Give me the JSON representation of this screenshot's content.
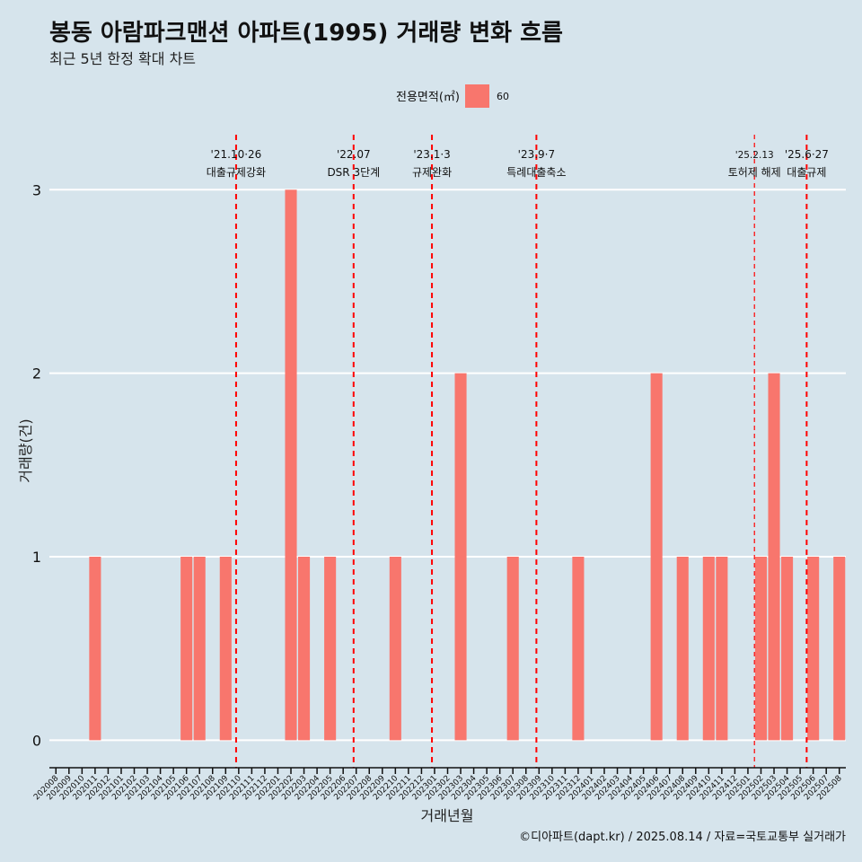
{
  "chart_data": {
    "type": "bar",
    "title": "봉동 아람파크맨션 아파트(1995) 거래량 변화 흐름",
    "subtitle": "최근 5년 한정 확대 차트",
    "xlabel": "거래년월",
    "ylabel": "거래량(건)",
    "ylim": [
      -0.15,
      3.3
    ],
    "yticks": [
      0,
      1,
      2,
      3
    ],
    "grid": true,
    "legend": {
      "title": "전용면적(㎡)",
      "entries": [
        {
          "name": "60",
          "color": "#f8766d"
        }
      ],
      "placement": "top"
    },
    "categories": [
      "202008",
      "202009",
      "202010",
      "202011",
      "202012",
      "202101",
      "202102",
      "202103",
      "202104",
      "202105",
      "202106",
      "202107",
      "202108",
      "202109",
      "202110",
      "202111",
      "202112",
      "202201",
      "202202",
      "202203",
      "202204",
      "202205",
      "202206",
      "202207",
      "202208",
      "202209",
      "202210",
      "202211",
      "202212",
      "202301",
      "202302",
      "202303",
      "202304",
      "202305",
      "202306",
      "202307",
      "202308",
      "202309",
      "202310",
      "202311",
      "202312",
      "202401",
      "202402",
      "202403",
      "202404",
      "202405",
      "202406",
      "202407",
      "202408",
      "202409",
      "202410",
      "202411",
      "202412",
      "202501",
      "202502",
      "202503",
      "202504",
      "202505",
      "202506",
      "202507",
      "202508"
    ],
    "series": [
      {
        "name": "60",
        "color": "#f8766d",
        "values": [
          0,
          0,
          0,
          1,
          0,
          0,
          0,
          0,
          0,
          0,
          1,
          1,
          0,
          1,
          0,
          0,
          0,
          0,
          3,
          1,
          0,
          1,
          0,
          0,
          0,
          0,
          1,
          0,
          0,
          0,
          0,
          2,
          0,
          0,
          0,
          1,
          0,
          0,
          0,
          0,
          1,
          0,
          0,
          0,
          0,
          0,
          2,
          0,
          1,
          0,
          1,
          1,
          0,
          0,
          1,
          2,
          1,
          0,
          1,
          0,
          1
        ]
      }
    ],
    "annotations": [
      {
        "x": 14.3,
        "line1": "'21.10·26",
        "line2": "대출규제강화",
        "style": "thick"
      },
      {
        "x": 23.3,
        "line1": "'22.07",
        "line2": "DSR 3단계",
        "style": "thick"
      },
      {
        "x": 29.3,
        "line1": "'23.1·3",
        "line2": "규제완화",
        "style": "thick"
      },
      {
        "x": 37.3,
        "line1": "'23.9·7",
        "line2": "특례대출축소",
        "style": "thick"
      },
      {
        "x": 54.0,
        "line1": "'25.2.13",
        "line2": "토허제 해제",
        "style": "thin"
      },
      {
        "x": 58.0,
        "line1": "'25.6·27",
        "line2": "대출규제",
        "style": "thick"
      }
    ]
  },
  "caption": "©디아파트(dapt.kr) / 2025.08.14 / 자료=국토교통부 실거래가",
  "colors": {
    "background": "#d6e4ec",
    "bar": "#f8766d",
    "vline": "#ff0000",
    "grid": "#ffffff"
  }
}
